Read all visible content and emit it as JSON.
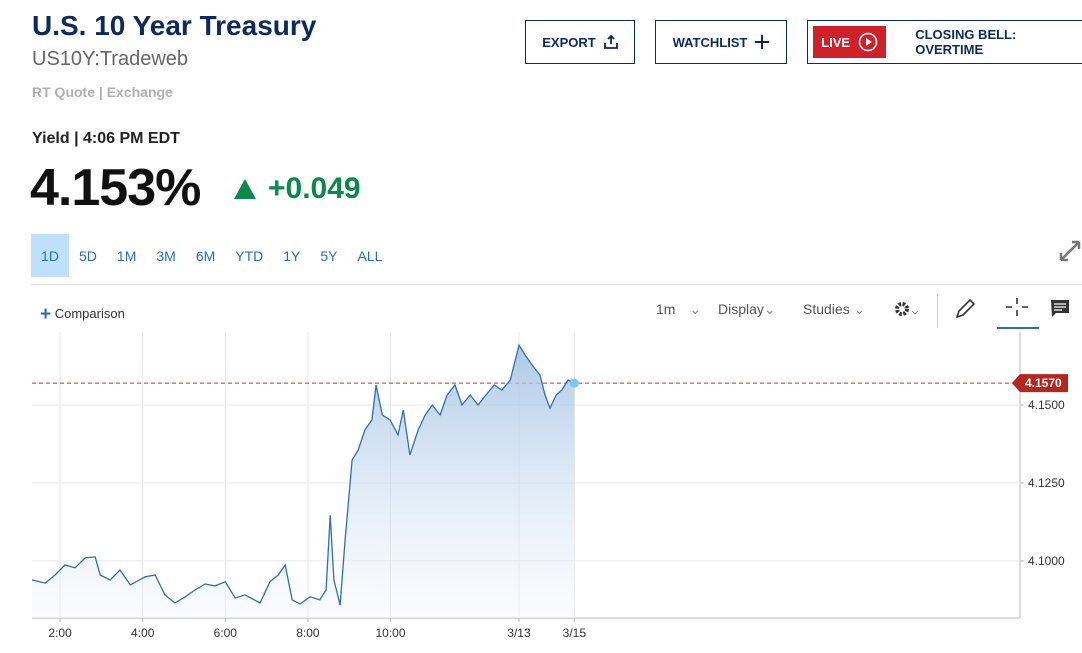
{
  "header": {
    "title": "U.S. 10 Year Treasury",
    "symbol": "US10Y:Tradeweb",
    "quote_source": "RT Quote | Exchange",
    "quote_time": "Yield | 4:06 PM EDT",
    "last": "4.153%",
    "change": "+0.049"
  },
  "buttons": {
    "export": "EXPORT",
    "watchlist": "WATCHLIST",
    "live": "LIVE",
    "program": "CLOSING BELL: OVERTIME"
  },
  "ranges": [
    "1D",
    "5D",
    "1M",
    "3M",
    "6M",
    "YTD",
    "1Y",
    "5Y",
    "ALL"
  ],
  "toolbar": {
    "comparison": "Comparison",
    "interval": "1m",
    "display": "Display",
    "studies": "Studies"
  },
  "chart_data": {
    "type": "area",
    "color": "#2f6fb0",
    "x": [
      1.32,
      1.64,
      1.88,
      2.12,
      2.36,
      2.61,
      2.85,
      2.97,
      3.21,
      3.45,
      3.7,
      4.06,
      4.3,
      4.54,
      4.78,
      5.03,
      5.27,
      5.51,
      5.75,
      6.0,
      6.24,
      6.48,
      6.84,
      7.08,
      7.28,
      7.45,
      7.62,
      7.81,
      8.05,
      8.29,
      8.44,
      8.54,
      8.63,
      8.78,
      8.9,
      9.07,
      9.22,
      9.38,
      9.55,
      9.65,
      9.8,
      9.99,
      10.18,
      10.31,
      10.47,
      10.67,
      10.84,
      11.01,
      11.2,
      11.37,
      11.56,
      11.73,
      11.93,
      12.12,
      12.31,
      12.51,
      12.7,
      12.9,
      13.02,
      13.11,
      13.26,
      13.43,
      13.62,
      13.74,
      13.86,
      14.01,
      14.15,
      14.3,
      14.45
    ],
    "values": [
      4.0939,
      4.0929,
      4.0955,
      4.0987,
      4.0978,
      4.101,
      4.1013,
      4.0955,
      4.0939,
      4.0971,
      4.0923,
      4.0949,
      4.0955,
      4.0891,
      4.0865,
      4.0885,
      4.0907,
      4.0926,
      4.092,
      4.0933,
      4.0881,
      4.0891,
      4.0865,
      4.0933,
      4.0955,
      4.0987,
      4.0875,
      4.0862,
      4.0885,
      4.0875,
      4.0907,
      4.1147,
      4.0939,
      4.0859,
      4.1067,
      4.1324,
      4.1356,
      4.142,
      4.1452,
      4.1564,
      4.1468,
      4.1452,
      4.1404,
      4.1484,
      4.134,
      4.142,
      4.1468,
      4.15,
      4.1468,
      4.1532,
      4.1564,
      4.15,
      4.1532,
      4.15,
      4.1532,
      4.1564,
      4.1548,
      4.158,
      4.1644,
      4.1692,
      4.166,
      4.1628,
      4.1596,
      4.1532,
      4.149,
      4.1532,
      4.1548,
      4.158,
      4.157
    ],
    "xlim": [
      1.32,
      25.24
    ],
    "xticks": [
      {
        "value": 2,
        "label": "2:00"
      },
      {
        "value": 4,
        "label": "4:00"
      },
      {
        "value": 6,
        "label": "6:00"
      },
      {
        "value": 8,
        "label": "8:00"
      },
      {
        "value": 10,
        "label": "10:00"
      },
      {
        "value": 13.11,
        "label": "3/13"
      },
      {
        "value": 14.45,
        "label": "3/15"
      }
    ],
    "ylim": [
      4.0817,
      4.1734
    ],
    "yticks": [
      {
        "value": 4.1,
        "label": "4.1000"
      },
      {
        "value": 4.125,
        "label": "4.1250"
      },
      {
        "value": 4.15,
        "label": "4.1500"
      }
    ],
    "current_line": {
      "value": 4.157,
      "label": "4.1570"
    },
    "grid": true
  }
}
